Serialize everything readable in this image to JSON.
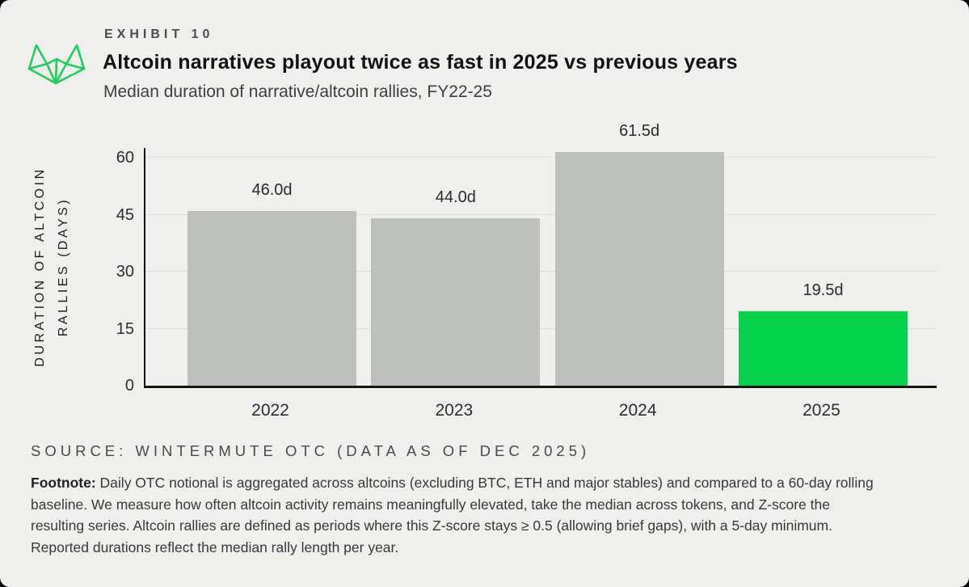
{
  "header": {
    "exhibit": "EXHIBIT 10",
    "title": "Altcoin narratives playout twice as fast in 2025 vs previous years",
    "subtitle": "Median duration of narrative/altcoin rallies, FY22-25"
  },
  "logo": {
    "name": "wintermute-logo",
    "color": "#1ecf5d"
  },
  "chart_data": {
    "type": "bar",
    "title": "Median duration of narrative/altcoin rallies, FY22-25",
    "xlabel": "",
    "ylabel": "DURATION OF ALTCOIN RALLIES (DAYS)",
    "ylabel_lines": [
      "DURATION OF ALTCOIN",
      "RALLIES (DAYS)"
    ],
    "categories": [
      "2022",
      "2023",
      "2024",
      "2025"
    ],
    "values": [
      46.0,
      44.0,
      61.5,
      19.5
    ],
    "bar_labels": [
      "46.0d",
      "44.0d",
      "61.5d",
      "19.5d"
    ],
    "bar_colors": [
      "#bdc0bd",
      "#bdc0bd",
      "#bdc0bd",
      "#07d24c"
    ],
    "yticks": [
      0,
      15,
      30,
      45,
      60
    ],
    "ylim": [
      0,
      62.5
    ],
    "grid": "horizontal",
    "legend": "none",
    "unit": "days"
  },
  "source": "SOURCE: WINTERMUTE OTC (DATA AS OF DEC 2025)",
  "footnote": {
    "label": "Footnote:",
    "lines": [
      "Daily OTC notional is aggregated across altcoins (excluding BTC, ETH and major stables) and compared to a 60-day rolling",
      "baseline. We measure how often altcoin activity remains meaningfully elevated, take the median across tokens, and Z-score the",
      "resulting series. Altcoin rallies are defined as periods where this Z-score stays ≥ 0.5 (allowing brief gaps), with a 5-day minimum.",
      "Reported durations reflect the median rally length per year."
    ]
  },
  "colors": {
    "background": "#efefed",
    "bar_gray": "#bdc0bd",
    "accent_green": "#07d24c",
    "axis": "#161616",
    "gridline": "#dcdedb"
  }
}
